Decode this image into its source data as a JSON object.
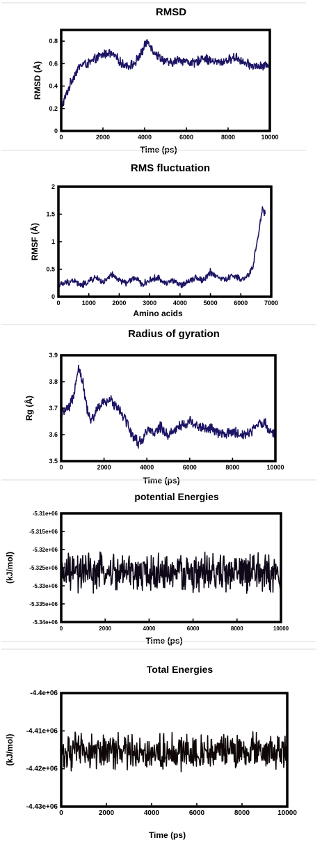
{
  "chart_data": [
    {
      "type": "line",
      "title": "RMSD",
      "xlabel": "Time (ps)",
      "ylabel": "RMSD (Å)",
      "xlim": [
        0,
        10000
      ],
      "ylim": [
        0,
        0.9
      ],
      "xticks": [
        0,
        2000,
        4000,
        6000,
        8000,
        10000
      ],
      "yticks": [
        0,
        0.2,
        0.4,
        0.6,
        0.8
      ],
      "ytick_labels": [
        "0",
        "0.2",
        "0.4",
        "0.6",
        "0.8"
      ],
      "color": "#1c1464",
      "band": 0.035,
      "series": [
        {
          "x": [
            0,
            100,
            300,
            500,
            700,
            900,
            1100,
            1300,
            1500,
            1700,
            2000,
            2300,
            2600,
            2900,
            3200,
            3500,
            3800,
            4000,
            4100,
            4200,
            4400,
            4700,
            5000,
            5300,
            5600,
            6000,
            6400,
            6800,
            7200,
            7600,
            8000,
            8400,
            8800,
            9200,
            9600,
            10000
          ],
          "y": [
            0.2,
            0.25,
            0.35,
            0.45,
            0.52,
            0.58,
            0.6,
            0.6,
            0.62,
            0.65,
            0.68,
            0.7,
            0.66,
            0.6,
            0.58,
            0.6,
            0.68,
            0.75,
            0.8,
            0.79,
            0.72,
            0.66,
            0.62,
            0.6,
            0.64,
            0.62,
            0.6,
            0.66,
            0.62,
            0.61,
            0.63,
            0.66,
            0.6,
            0.58,
            0.57,
            0.6
          ]
        }
      ]
    },
    {
      "type": "line",
      "title": "RMS fluctuation",
      "xlabel": "Amino acids",
      "ylabel": "RMSF  (Å)",
      "xlim": [
        0,
        7000
      ],
      "ylim": [
        0,
        2
      ],
      "xticks": [
        0,
        1000,
        2000,
        3000,
        4000,
        5000,
        6000,
        7000
      ],
      "yticks": [
        0,
        0.5,
        1,
        1.5,
        2
      ],
      "ytick_labels": [
        "0",
        "0.5",
        "1",
        "1.5",
        "2"
      ],
      "color": "#1c1464",
      "band": 0.05,
      "series": [
        {
          "x": [
            0,
            250,
            500,
            750,
            1000,
            1250,
            1500,
            1750,
            2000,
            2250,
            2500,
            2750,
            3000,
            3250,
            3500,
            3750,
            4000,
            4250,
            4500,
            4750,
            5000,
            5250,
            5500,
            5750,
            6000,
            6200,
            6400,
            6500,
            6600,
            6700,
            6800
          ],
          "y": [
            0.2,
            0.25,
            0.3,
            0.2,
            0.28,
            0.35,
            0.25,
            0.4,
            0.3,
            0.25,
            0.35,
            0.22,
            0.3,
            0.35,
            0.25,
            0.3,
            0.2,
            0.28,
            0.35,
            0.3,
            0.45,
            0.35,
            0.3,
            0.4,
            0.3,
            0.35,
            0.55,
            0.9,
            1.2,
            1.6,
            1.5
          ]
        }
      ]
    },
    {
      "type": "line",
      "title": "Radius of gyration",
      "xlabel": "Time (ps)",
      "ylabel": "Rg (Å)",
      "xlim": [
        0,
        10000
      ],
      "ylim": [
        3.5,
        3.9
      ],
      "xticks": [
        0,
        2000,
        4000,
        6000,
        8000,
        10000
      ],
      "yticks": [
        3.5,
        3.6,
        3.7,
        3.8,
        3.9
      ],
      "ytick_labels": [
        "3.5",
        "3.6",
        "3.7",
        "3.8",
        "3.9"
      ],
      "color": "#1c1464",
      "band": 0.018,
      "series": [
        {
          "x": [
            0,
            200,
            400,
            600,
            800,
            1000,
            1200,
            1400,
            1700,
            2000,
            2300,
            2600,
            3000,
            3300,
            3600,
            3800,
            4000,
            4300,
            4600,
            5000,
            5500,
            6000,
            6500,
            7000,
            7500,
            8000,
            8500,
            9000,
            9300,
            9500,
            9700,
            10000
          ],
          "y": [
            3.68,
            3.69,
            3.7,
            3.76,
            3.86,
            3.8,
            3.7,
            3.65,
            3.7,
            3.72,
            3.73,
            3.71,
            3.66,
            3.6,
            3.57,
            3.58,
            3.62,
            3.6,
            3.63,
            3.6,
            3.63,
            3.65,
            3.63,
            3.62,
            3.6,
            3.61,
            3.6,
            3.62,
            3.65,
            3.64,
            3.62,
            3.6
          ]
        }
      ]
    },
    {
      "type": "line",
      "title": "potential Energies",
      "xlabel": "Time (ps)",
      "ylabel": "(kJ/mol)",
      "xlim": [
        0,
        10000
      ],
      "ylim": [
        -5340000,
        -5310000
      ],
      "xticks": [
        0,
        2000,
        4000,
        6000,
        8000,
        10000
      ],
      "yticks": [
        -5340000,
        -5335000,
        -5330000,
        -5325000,
        -5320000,
        -5315000,
        -5310000
      ],
      "ytick_labels": [
        "-5.34e+06",
        "-5.335e+06",
        "-5.33e+06",
        "-5.325e+06",
        "-5.32e+06",
        "-5.315e+06",
        "-5.31e+06"
      ],
      "color": "#100818",
      "band": 4500,
      "series": [
        {
          "x": [
            0,
            1000,
            2000,
            3000,
            4000,
            5000,
            6000,
            7000,
            8000,
            9000,
            10000
          ],
          "y": [
            -5326500,
            -5326500,
            -5326500,
            -5326500,
            -5326500,
            -5326500,
            -5326500,
            -5326500,
            -5326500,
            -5326500,
            -5326500
          ]
        }
      ]
    },
    {
      "type": "line",
      "title": "Total Energies",
      "xlabel": "Time (ps)",
      "ylabel": "(kJ/mol)",
      "xlim": [
        0,
        10000
      ],
      "ylim": [
        -4430000,
        -4400000
      ],
      "xticks": [
        0,
        2000,
        4000,
        6000,
        8000,
        10000
      ],
      "yticks": [
        -4430000,
        -4420000,
        -4410000,
        -4400000
      ],
      "ytick_labels": [
        "-4.43e+06",
        "-4.42e+06",
        "-4.41e+06",
        "-4.4e+06"
      ],
      "color": "#100808",
      "band": 4000,
      "series": [
        {
          "x": [
            0,
            1000,
            2000,
            3000,
            4000,
            5000,
            6000,
            7000,
            8000,
            9000,
            10000
          ],
          "y": [
            -4415500,
            -4415500,
            -4415500,
            -4415500,
            -4415500,
            -4415500,
            -4415500,
            -4415500,
            -4415500,
            -4415500,
            -4415500
          ]
        }
      ]
    }
  ]
}
